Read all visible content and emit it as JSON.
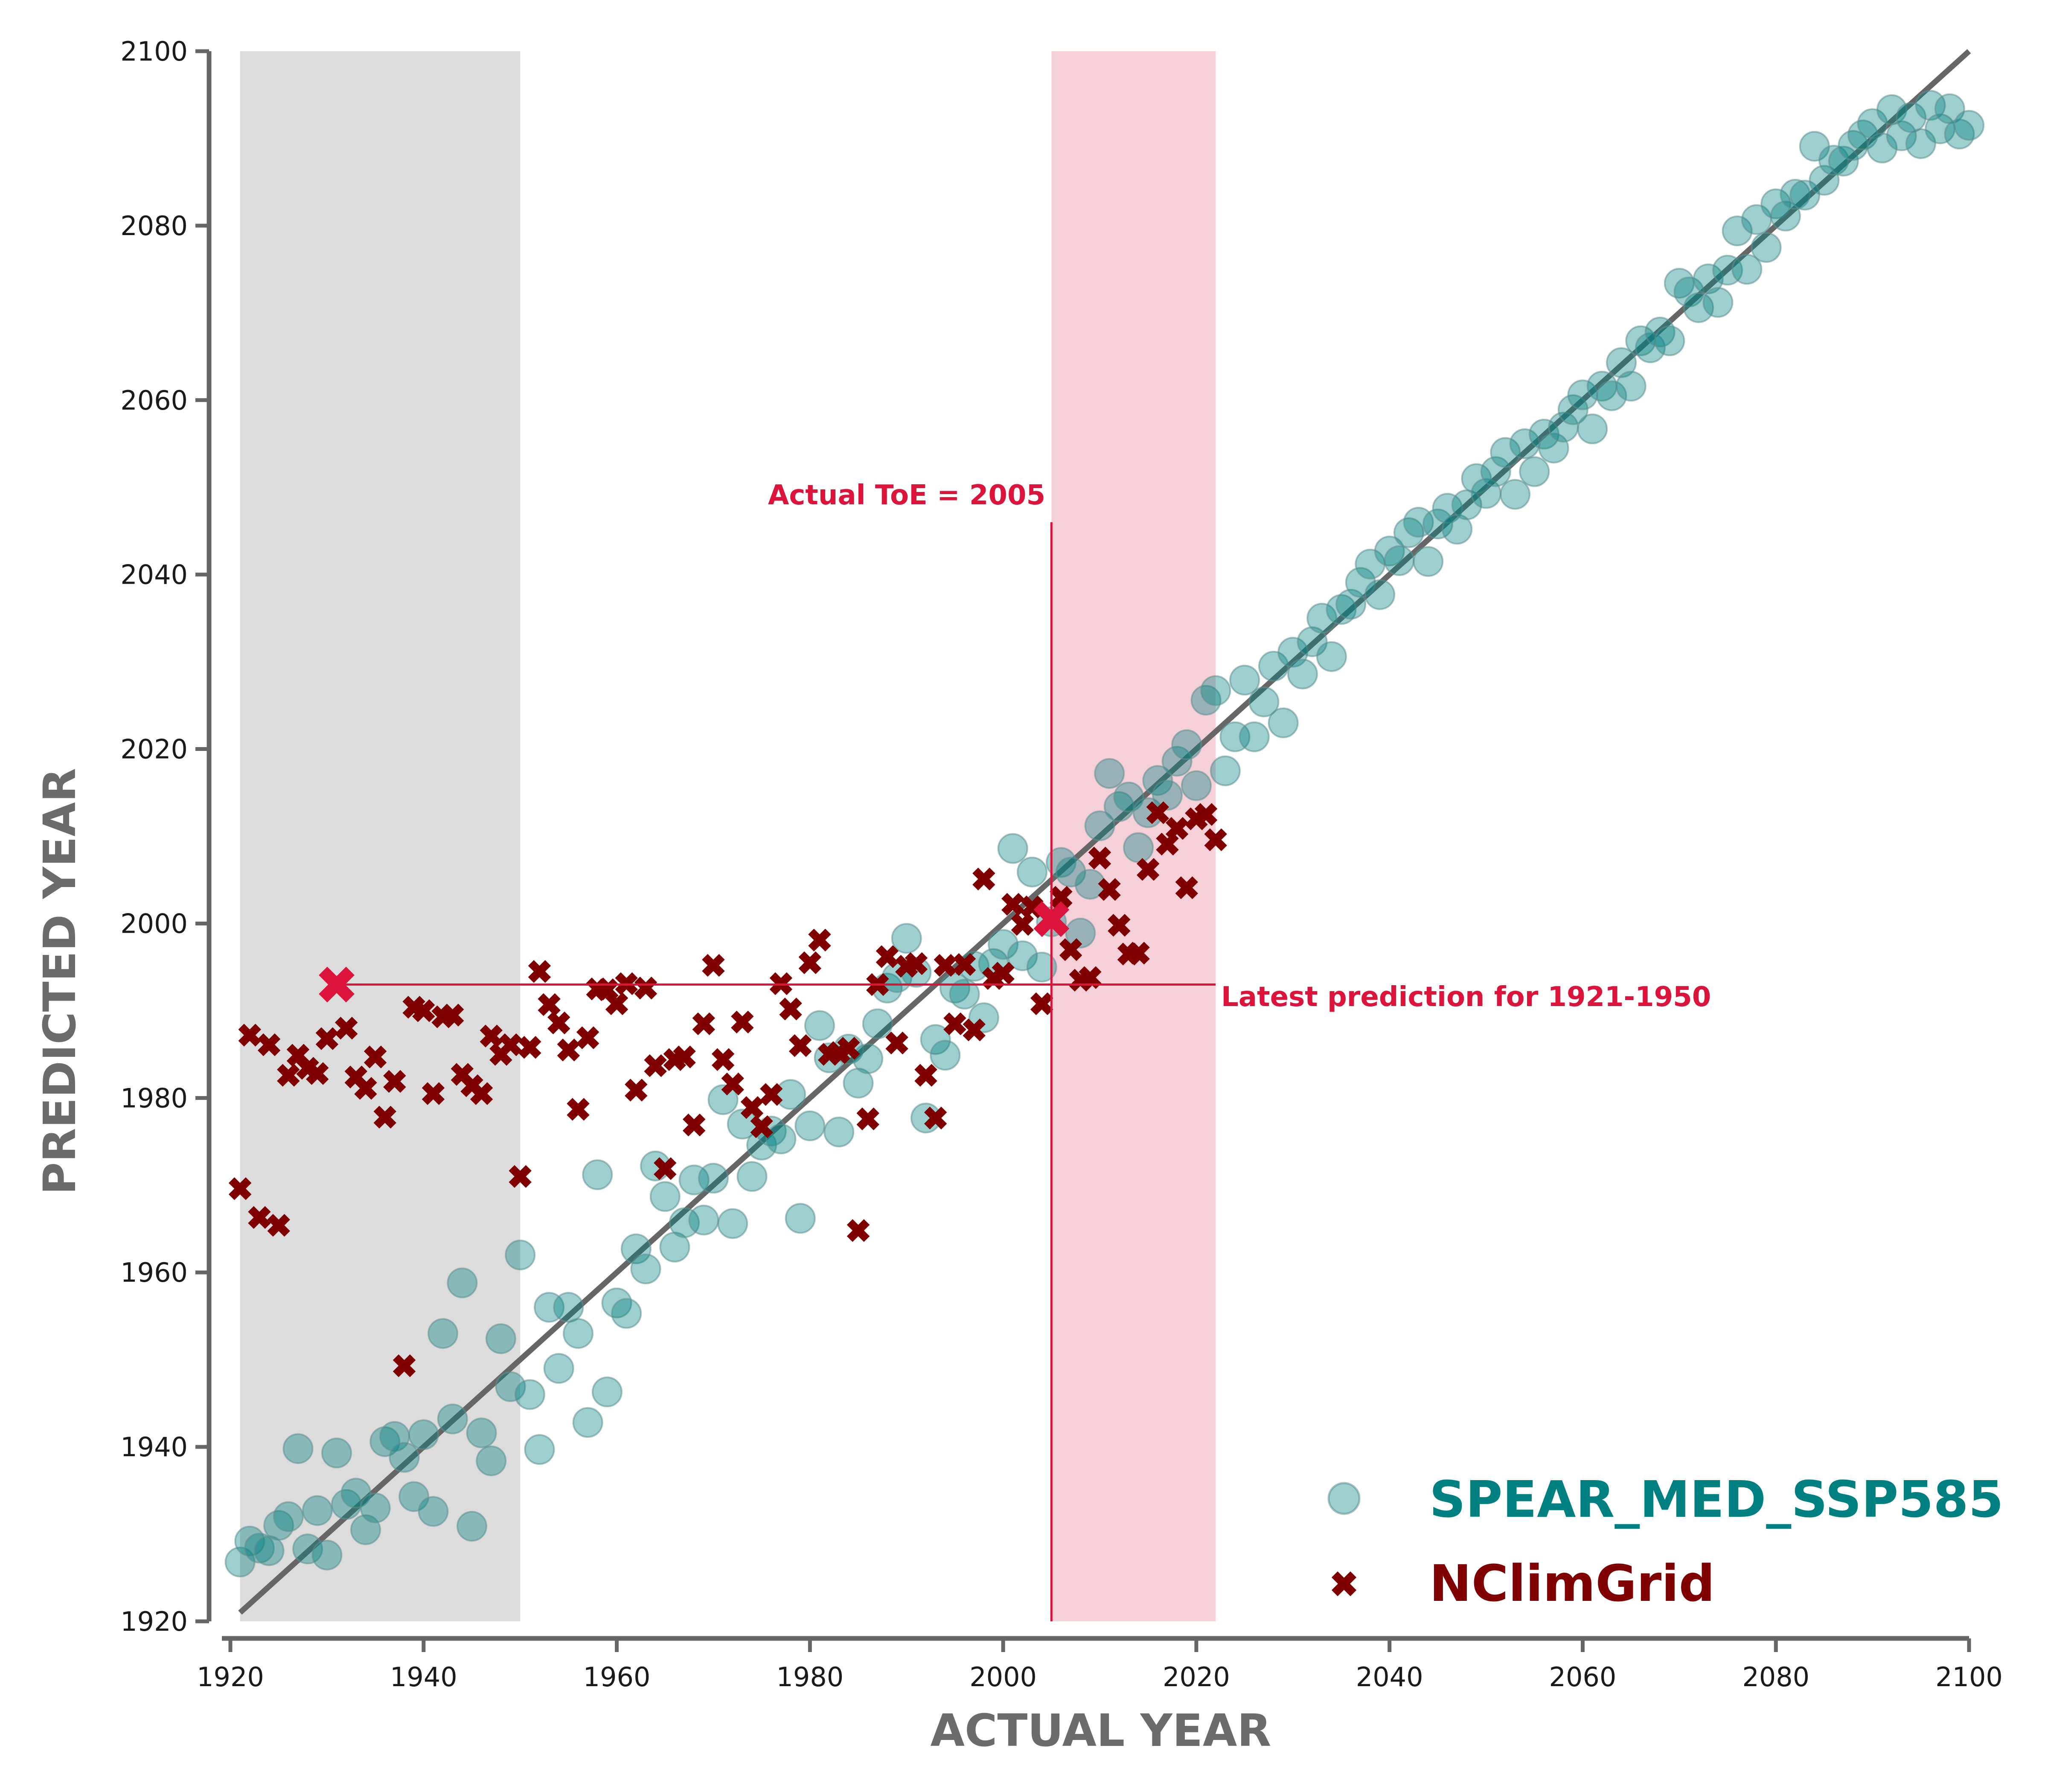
{
  "chart_data": {
    "type": "scatter",
    "xlabel": "ACTUAL YEAR",
    "ylabel": "PREDICTED YEAR",
    "xlim": [
      1920,
      2100
    ],
    "ylim": [
      1920,
      2100
    ],
    "xticks": [
      "1920",
      "1940",
      "1960",
      "1980",
      "2000",
      "2020",
      "2040",
      "2060",
      "2080",
      "2100"
    ],
    "yticks": [
      "1920",
      "1940",
      "1960",
      "1980",
      "2000",
      "2020",
      "2040",
      "2060",
      "2080",
      "2100"
    ],
    "grid": false,
    "legend_position": "bottom-right",
    "shaded_regions": [
      {
        "x0": 1921,
        "x1": 1950,
        "color": "#dcdcdc"
      },
      {
        "x0": 2005,
        "x1": 2022,
        "color": "#f6d0d8"
      }
    ],
    "reference_line": {
      "x": [
        1921,
        2100
      ],
      "y": [
        1921,
        2100
      ],
      "color": "#666666"
    },
    "annotations": [
      {
        "text": "Actual ToE = 2005",
        "color": "#dc143c"
      },
      {
        "text": "Latest prediction for 1921-1950",
        "color": "#dc143c"
      }
    ],
    "annotation_lines": {
      "vertical": {
        "x": 2005,
        "y0": 1920,
        "y1": 2046
      },
      "horizontal": {
        "y": 1993,
        "x0": 1931,
        "x1": 2022
      },
      "highlight_markers": [
        {
          "x": 1931,
          "y": 1993
        },
        {
          "x": 2005,
          "y": 2000.5
        }
      ],
      "color": "#dc143c"
    },
    "series": [
      {
        "name": "SPEAR_MED_SSP585",
        "marker": "circle",
        "color": "#008080",
        "legend_color": "#008080",
        "points": [
          [
            1921,
            1926.8
          ],
          [
            1922,
            1929.2
          ],
          [
            1923,
            1928.4
          ],
          [
            1924,
            1928.1
          ],
          [
            1925,
            1931.0
          ],
          [
            1926,
            1932.0
          ],
          [
            1927,
            1939.8
          ],
          [
            1928,
            1928.3
          ],
          [
            1929,
            1932.7
          ],
          [
            1930,
            1927.6
          ],
          [
            1931,
            1939.3
          ],
          [
            1932,
            1933.4
          ],
          [
            1933,
            1934.7
          ],
          [
            1934,
            1930.5
          ],
          [
            1935,
            1933.0
          ],
          [
            1936,
            1940.6
          ],
          [
            1937,
            1941.2
          ],
          [
            1938,
            1938.8
          ],
          [
            1939,
            1934.3
          ],
          [
            1940,
            1941.4
          ],
          [
            1941,
            1932.6
          ],
          [
            1942,
            1953.0
          ],
          [
            1943,
            1943.2
          ],
          [
            1944,
            1958.8
          ],
          [
            1945,
            1930.9
          ],
          [
            1946,
            1941.6
          ],
          [
            1947,
            1938.4
          ],
          [
            1948,
            1952.4
          ],
          [
            1949,
            1946.9
          ],
          [
            1950,
            1962.0
          ],
          [
            1951,
            1946.0
          ],
          [
            1952,
            1939.7
          ],
          [
            1953,
            1956.0
          ],
          [
            1954,
            1949.0
          ],
          [
            1955,
            1956.0
          ],
          [
            1956,
            1953.0
          ],
          [
            1957,
            1942.8
          ],
          [
            1958,
            1971.2
          ],
          [
            1959,
            1946.3
          ],
          [
            1960,
            1956.5
          ],
          [
            1961,
            1955.3
          ],
          [
            1962,
            1962.7
          ],
          [
            1963,
            1960.4
          ],
          [
            1964,
            1972.2
          ],
          [
            1965,
            1968.7
          ],
          [
            1966,
            1962.9
          ],
          [
            1967,
            1965.7
          ],
          [
            1968,
            1970.6
          ],
          [
            1969,
            1966.0
          ],
          [
            1970,
            1970.8
          ],
          [
            1971,
            1979.8
          ],
          [
            1972,
            1965.6
          ],
          [
            1973,
            1977.0
          ],
          [
            1974,
            1971.0
          ],
          [
            1975,
            1974.6
          ],
          [
            1976,
            1976.2
          ],
          [
            1977,
            1975.3
          ],
          [
            1978,
            1980.4
          ],
          [
            1979,
            1966.2
          ],
          [
            1980,
            1976.8
          ],
          [
            1981,
            1988.3
          ],
          [
            1982,
            1984.6
          ],
          [
            1983,
            1976.1
          ],
          [
            1984,
            1985.6
          ],
          [
            1985,
            1981.7
          ],
          [
            1986,
            1984.5
          ],
          [
            1987,
            1988.5
          ],
          [
            1988,
            1992.6
          ],
          [
            1989,
            1993.8
          ],
          [
            1990,
            1998.3
          ],
          [
            1991,
            1994.4
          ],
          [
            1992,
            1977.7
          ],
          [
            1993,
            1986.7
          ],
          [
            1994,
            1984.9
          ],
          [
            1995,
            1992.6
          ],
          [
            1996,
            1991.9
          ],
          [
            1997,
            1995.1
          ],
          [
            1998,
            1989.2
          ],
          [
            1999,
            1995.4
          ],
          [
            2000,
            1997.6
          ],
          [
            2001,
            2008.6
          ],
          [
            2002,
            1996.3
          ],
          [
            2003,
            2005.9
          ],
          [
            2004,
            1995.0
          ],
          [
            2005,
            2000.2
          ],
          [
            2006,
            2007.0
          ],
          [
            2007,
            2005.9
          ],
          [
            2008,
            1998.9
          ],
          [
            2009,
            2004.5
          ],
          [
            2010,
            2011.2
          ],
          [
            2011,
            2017.2
          ],
          [
            2012,
            2013.4
          ],
          [
            2013,
            2014.5
          ],
          [
            2014,
            2008.7
          ],
          [
            2015,
            2012.7
          ],
          [
            2016,
            2016.4
          ],
          [
            2017,
            2014.7
          ],
          [
            2018,
            2018.6
          ],
          [
            2019,
            2020.5
          ],
          [
            2020,
            2015.8
          ],
          [
            2021,
            2025.6
          ],
          [
            2022,
            2026.7
          ],
          [
            2023,
            2017.5
          ],
          [
            2024,
            2021.4
          ],
          [
            2025,
            2027.9
          ],
          [
            2026,
            2021.4
          ],
          [
            2027,
            2025.4
          ],
          [
            2028,
            2029.5
          ],
          [
            2029,
            2023.0
          ],
          [
            2030,
            2031.1
          ],
          [
            2031,
            2028.6
          ],
          [
            2032,
            2032.3
          ],
          [
            2033,
            2035.0
          ],
          [
            2034,
            2030.6
          ],
          [
            2035,
            2036.0
          ],
          [
            2036,
            2036.6
          ],
          [
            2037,
            2039.1
          ],
          [
            2038,
            2041.2
          ],
          [
            2039,
            2037.7
          ],
          [
            2040,
            2042.7
          ],
          [
            2041,
            2041.6
          ],
          [
            2042,
            2044.8
          ],
          [
            2043,
            2046.0
          ],
          [
            2044,
            2041.5
          ],
          [
            2045,
            2045.8
          ],
          [
            2046,
            2047.6
          ],
          [
            2047,
            2045.2
          ],
          [
            2048,
            2048.0
          ],
          [
            2049,
            2051.0
          ],
          [
            2050,
            2049.3
          ],
          [
            2051,
            2051.8
          ],
          [
            2052,
            2054.0
          ],
          [
            2053,
            2049.2
          ],
          [
            2054,
            2055.0
          ],
          [
            2055,
            2051.8
          ],
          [
            2056,
            2056.1
          ],
          [
            2057,
            2054.5
          ],
          [
            2058,
            2056.9
          ],
          [
            2059,
            2058.9
          ],
          [
            2060,
            2060.6
          ],
          [
            2061,
            2056.7
          ],
          [
            2062,
            2061.6
          ],
          [
            2063,
            2060.5
          ],
          [
            2064,
            2064.3
          ],
          [
            2065,
            2061.6
          ],
          [
            2066,
            2066.8
          ],
          [
            2067,
            2066.0
          ],
          [
            2068,
            2067.8
          ],
          [
            2069,
            2066.8
          ],
          [
            2070,
            2073.4
          ],
          [
            2071,
            2072.4
          ],
          [
            2072,
            2070.6
          ],
          [
            2073,
            2073.9
          ],
          [
            2074,
            2071.2
          ],
          [
            2075,
            2074.9
          ],
          [
            2076,
            2079.4
          ],
          [
            2077,
            2075.0
          ],
          [
            2078,
            2080.7
          ],
          [
            2079,
            2077.5
          ],
          [
            2080,
            2082.5
          ],
          [
            2081,
            2081.1
          ],
          [
            2082,
            2083.6
          ],
          [
            2083,
            2083.5
          ],
          [
            2084,
            2089.1
          ],
          [
            2085,
            2085.2
          ],
          [
            2086,
            2087.5
          ],
          [
            2087,
            2087.4
          ],
          [
            2088,
            2089.2
          ],
          [
            2089,
            2090.4
          ],
          [
            2090,
            2091.7
          ],
          [
            2091,
            2088.9
          ],
          [
            2092,
            2093.3
          ],
          [
            2093,
            2090.3
          ],
          [
            2094,
            2092.4
          ],
          [
            2095,
            2089.4
          ],
          [
            2096,
            2093.8
          ],
          [
            2097,
            2091.1
          ],
          [
            2098,
            2093.4
          ],
          [
            2099,
            2090.5
          ],
          [
            2100,
            2091.5
          ]
        ]
      },
      {
        "name": "NClimGrid",
        "marker": "x",
        "color": "#800000",
        "legend_color": "#800000",
        "points": [
          [
            1921,
            1969.6
          ],
          [
            1922,
            1987.2
          ],
          [
            1923,
            1966.3
          ],
          [
            1924,
            1986.1
          ],
          [
            1925,
            1965.4
          ],
          [
            1926,
            1982.6
          ],
          [
            1927,
            1984.9
          ],
          [
            1928,
            1983.4
          ],
          [
            1929,
            1982.8
          ],
          [
            1930,
            1986.8
          ],
          [
            1931,
            1993.0
          ],
          [
            1932,
            1988.0
          ],
          [
            1933,
            1982.4
          ],
          [
            1934,
            1981.1
          ],
          [
            1935,
            1984.7
          ],
          [
            1936,
            1977.8
          ],
          [
            1937,
            1981.9
          ],
          [
            1938,
            1949.3
          ],
          [
            1939,
            1990.4
          ],
          [
            1940,
            1990.0
          ],
          [
            1941,
            1980.5
          ],
          [
            1942,
            1989.3
          ],
          [
            1943,
            1989.5
          ],
          [
            1944,
            1982.7
          ],
          [
            1945,
            1981.4
          ],
          [
            1946,
            1980.5
          ],
          [
            1947,
            1987.1
          ],
          [
            1948,
            1985.0
          ],
          [
            1949,
            1986.1
          ],
          [
            1950,
            1971.0
          ],
          [
            1951,
            1985.8
          ],
          [
            1952,
            1994.5
          ],
          [
            1953,
            1990.7
          ],
          [
            1954,
            1988.6
          ],
          [
            1955,
            1985.5
          ],
          [
            1956,
            1978.7
          ],
          [
            1957,
            1986.9
          ],
          [
            1958,
            1992.5
          ],
          [
            1959,
            1992.4
          ],
          [
            1960,
            1990.8
          ],
          [
            1961,
            1993.1
          ],
          [
            1962,
            1980.9
          ],
          [
            1963,
            1992.6
          ],
          [
            1964,
            1983.7
          ],
          [
            1965,
            1971.9
          ],
          [
            1966,
            1984.4
          ],
          [
            1967,
            1984.7
          ],
          [
            1968,
            1976.9
          ],
          [
            1969,
            1988.5
          ],
          [
            1970,
            1995.2
          ],
          [
            1971,
            1984.4
          ],
          [
            1972,
            1981.6
          ],
          [
            1973,
            1988.7
          ],
          [
            1974,
            1978.9
          ],
          [
            1975,
            1976.7
          ],
          [
            1976,
            1980.4
          ],
          [
            1977,
            1993.1
          ],
          [
            1978,
            1990.2
          ],
          [
            1979,
            1986.0
          ],
          [
            1980,
            1995.5
          ],
          [
            1981,
            1998.1
          ],
          [
            1982,
            1985.0
          ],
          [
            1983,
            1985.2
          ],
          [
            1984,
            1985.7
          ],
          [
            1985,
            1964.8
          ],
          [
            1986,
            1977.6
          ],
          [
            1987,
            1993.0
          ],
          [
            1988,
            1996.2
          ],
          [
            1989,
            1986.3
          ],
          [
            1990,
            1995.1
          ],
          [
            1991,
            1995.4
          ],
          [
            1992,
            1982.6
          ],
          [
            1993,
            1977.7
          ],
          [
            1994,
            1995.2
          ],
          [
            1995,
            1988.5
          ],
          [
            1996,
            1995.3
          ],
          [
            1997,
            1987.8
          ],
          [
            1998,
            2005.1
          ],
          [
            1999,
            1993.7
          ],
          [
            2000,
            1994.3
          ],
          [
            2001,
            2002.2
          ],
          [
            2002,
            1999.9
          ],
          [
            2003,
            2001.9
          ],
          [
            2004,
            1990.8
          ],
          [
            2005,
            2000.5
          ],
          [
            2006,
            2003.0
          ],
          [
            2007,
            1997.0
          ],
          [
            2008,
            1993.5
          ],
          [
            2009,
            1993.8
          ],
          [
            2010,
            2007.5
          ],
          [
            2011,
            2003.9
          ],
          [
            2012,
            1999.8
          ],
          [
            2013,
            1996.5
          ],
          [
            2014,
            1996.6
          ],
          [
            2015,
            2006.2
          ],
          [
            2016,
            2012.7
          ],
          [
            2017,
            2009.1
          ],
          [
            2018,
            2010.9
          ],
          [
            2019,
            2004.1
          ],
          [
            2020,
            2012.0
          ],
          [
            2021,
            2012.5
          ],
          [
            2022,
            2009.6
          ]
        ]
      }
    ]
  }
}
